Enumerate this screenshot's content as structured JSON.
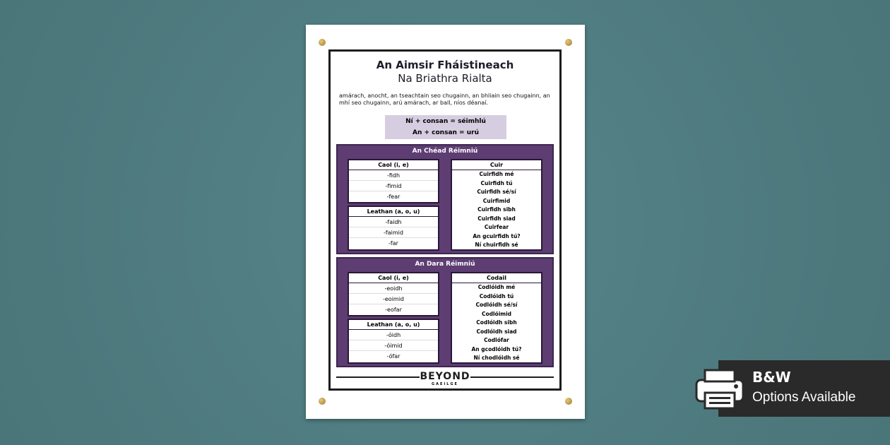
{
  "poster": {
    "title": "An Aimsir Fháistineach",
    "subtitle": "Na Briathra Rialta",
    "time_words": "amárach, anocht, an tseachtain seo chugainn, an bhliain seo chugainn, an mhí seo chugainn, arú amárach, ar ball, níos déanaí.",
    "rules": [
      "Ní + consan = séimhlú",
      "An + consan = urú"
    ],
    "groups": [
      {
        "title": "An Chéad Réimniú",
        "caol": {
          "header": "Caol (i, e)",
          "rows": [
            "-fidh",
            "-fimid",
            "-fear"
          ]
        },
        "leathan": {
          "header": "Leathan (a, o, u)",
          "rows": [
            "-faidh",
            "-faimid",
            "-far"
          ]
        },
        "verb": {
          "header": "Cuir",
          "rows": [
            "Cuirfidh mé",
            "Cuirfidh tú",
            "Cuirfidh sé/sí",
            "Cuirfimid",
            "Cuirfidh sibh",
            "Cuirfidh siad",
            "Cuirfear",
            "An gcuirfidh tú?",
            "Ní chuirfidh sé"
          ]
        }
      },
      {
        "title": "An Dara Réimniú",
        "caol": {
          "header": "Caol (i, e)",
          "rows": [
            "-eoidh",
            "-eoimid",
            "-eofar"
          ]
        },
        "leathan": {
          "header": "Leathan (a, o, u)",
          "rows": [
            "-óidh",
            "-óimid",
            "-ófar"
          ]
        },
        "verb": {
          "header": "Codail",
          "rows": [
            "Codlóidh mé",
            "Codlóidh tú",
            "Codlóidh sé/sí",
            "Codlóimid",
            "Codlóidh sibh",
            "Codlóidh siad",
            "Codlófar",
            "An gcodlóidh tú?",
            "Ní chodlóidh sé"
          ]
        }
      }
    ],
    "logo": {
      "main": "BEYOND",
      "sub": "GAEILGE"
    }
  },
  "badge": {
    "title": "B&W",
    "text": "Options Available",
    "icon": "printer-icon"
  },
  "colors": {
    "background": "#4e7b80",
    "purple": "#5d3d72",
    "rule_box": "#d7cde0",
    "badge": "#2a2a2a"
  }
}
